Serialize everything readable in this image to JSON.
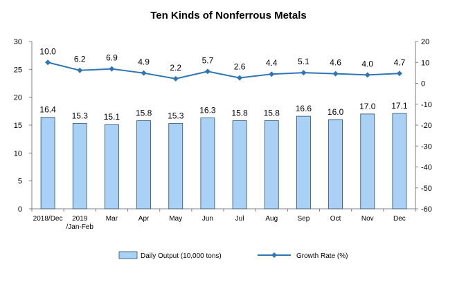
{
  "chart_data": {
    "type": "bar",
    "title": "Ten Kinds of Nonferrous Metals",
    "categories": [
      [
        "2018/Dec"
      ],
      [
        "2019",
        "/Jan-Feb"
      ],
      [
        "Mar"
      ],
      [
        "Apr"
      ],
      [
        "May"
      ],
      [
        "Jun"
      ],
      [
        "Jul"
      ],
      [
        "Aug"
      ],
      [
        "Sep"
      ],
      [
        "Oct"
      ],
      [
        "Nov"
      ],
      [
        "Dec"
      ]
    ],
    "series": [
      {
        "name": "Daily Output (10,000 tons)",
        "type": "bar",
        "axis": "left",
        "color": "#a9d0f5",
        "values": [
          16.4,
          15.3,
          15.1,
          15.8,
          15.3,
          16.3,
          15.8,
          15.8,
          16.6,
          16.0,
          17.0,
          17.1
        ],
        "labels": [
          "16.4",
          "15.3",
          "15.1",
          "15.8",
          "15.3",
          "16.3",
          "15.8",
          "15.8",
          "16.6",
          "16.0",
          "17.0",
          "17.1"
        ]
      },
      {
        "name": "Growth Rate (%)",
        "type": "line",
        "axis": "right",
        "color": "#2e75b6",
        "values": [
          10.0,
          6.2,
          6.9,
          4.9,
          2.2,
          5.7,
          2.6,
          4.4,
          5.1,
          4.6,
          4.0,
          4.7
        ],
        "labels": [
          "10.0",
          "6.2",
          "6.9",
          "4.9",
          "2.2",
          "5.7",
          "2.6",
          "4.4",
          "5.1",
          "4.6",
          "4.0",
          "4.7"
        ]
      }
    ],
    "y_left": {
      "ylim": [
        0,
        30
      ],
      "ticks": [
        0,
        5,
        10,
        15,
        20,
        25,
        30
      ]
    },
    "y_right": {
      "ylim": [
        -60,
        20
      ],
      "ticks": [
        -60,
        -50,
        -40,
        -30,
        -20,
        -10,
        0,
        10,
        20
      ]
    },
    "grid": false,
    "legend_position": "bottom"
  }
}
